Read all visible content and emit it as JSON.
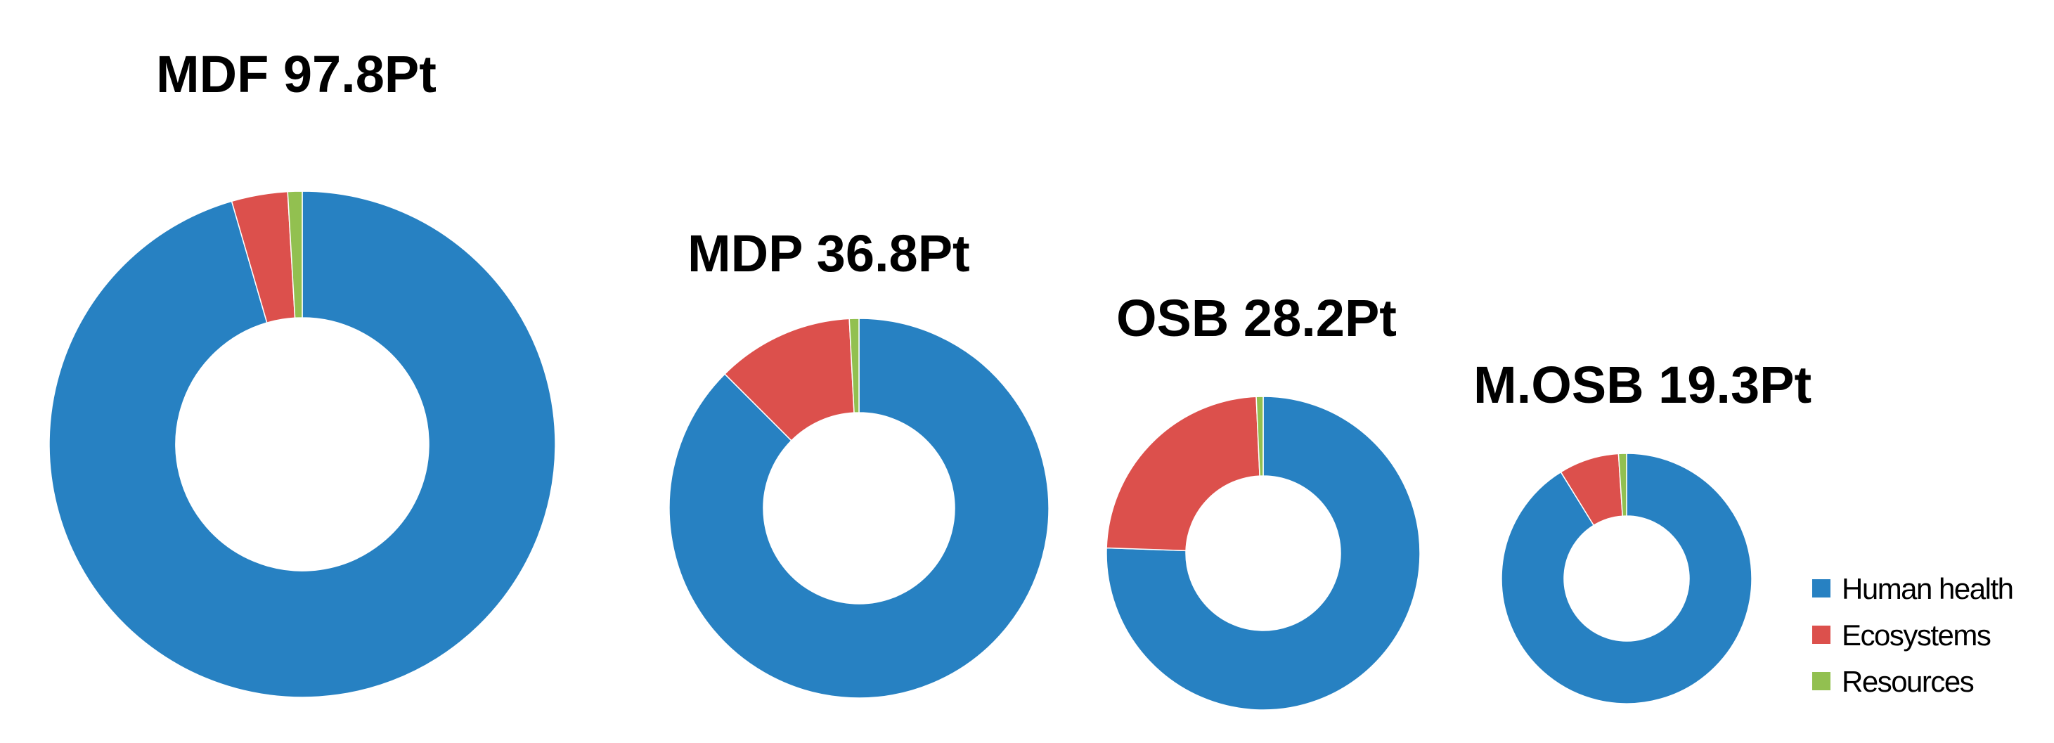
{
  "chart_data": {
    "type": "donut",
    "legend_position": "bottom-right",
    "series_names": [
      "Human health",
      "Ecosystems",
      "Resources"
    ],
    "colors": {
      "Human health": "#2781c2",
      "Ecosystems": "#dc504c",
      "Resources": "#92c050"
    },
    "charts": [
      {
        "title": "MDF 97.8Pt",
        "total": 97.8,
        "values": {
          "Human health": 93.4,
          "Ecosystems": 3.5,
          "Resources": 0.9
        }
      },
      {
        "title": "MDP 36.8Pt",
        "total": 36.8,
        "values": {
          "Human health": 32.2,
          "Ecosystems": 4.3,
          "Resources": 0.3
        }
      },
      {
        "title": "OSB 28.2Pt",
        "total": 28.2,
        "values": {
          "Human health": 21.3,
          "Ecosystems": 6.7,
          "Resources": 0.2
        }
      },
      {
        "title": "M.OSB 19.3Pt",
        "total": 19.3,
        "values": {
          "Human health": 17.6,
          "Ecosystems": 1.5,
          "Resources": 0.2
        }
      }
    ]
  }
}
